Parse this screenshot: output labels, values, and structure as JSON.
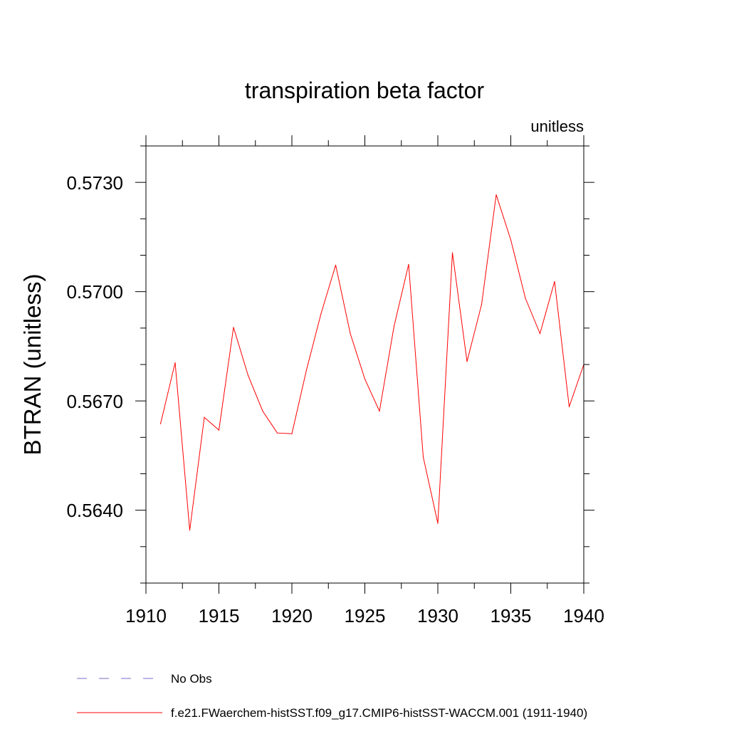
{
  "chart_data": {
    "type": "line",
    "title": "transpiration beta factor",
    "units": "unitless",
    "xlabel": "",
    "ylabel": "BTRAN  (unitless)",
    "xlim": [
      1910,
      1940
    ],
    "ylim": [
      0.562,
      0.574
    ],
    "x_ticks": [
      "1910",
      "1915",
      "1920",
      "1925",
      "1930",
      "1935",
      "1940"
    ],
    "y_ticks": [
      "0.5640",
      "0.5670",
      "0.5700",
      "0.5730"
    ],
    "legend_position": "bottom",
    "series": [
      {
        "name": "f.e21.FWaerchem-histSST.f09_g17.CMIP6-histSST-WACCM.001 (1911-1940)",
        "color": "#ff0000",
        "dash": "solid",
        "x": [
          1911,
          1912,
          1913,
          1914,
          1915,
          1916,
          1917,
          1918,
          1919,
          1920,
          1921,
          1922,
          1923,
          1924,
          1925,
          1926,
          1927,
          1928,
          1929,
          1930,
          1931,
          1932,
          1933,
          1934,
          1935,
          1936,
          1937,
          1938,
          1939,
          1940
        ],
        "values": [
          0.56637,
          0.56805,
          0.56345,
          0.56655,
          0.5662,
          0.56902,
          0.5677,
          0.56672,
          0.56612,
          0.5661,
          0.56785,
          0.5694,
          0.57073,
          0.56885,
          0.5676,
          0.56672,
          0.56905,
          0.57075,
          0.56546,
          0.56364,
          0.57107,
          0.56808,
          0.56965,
          0.57266,
          0.57142,
          0.56982,
          0.56885,
          0.57028,
          0.56684,
          0.568
        ]
      },
      {
        "name": "No Obs",
        "color": "#7b68c8",
        "dash": "dashed",
        "x": [],
        "values": []
      }
    ]
  }
}
